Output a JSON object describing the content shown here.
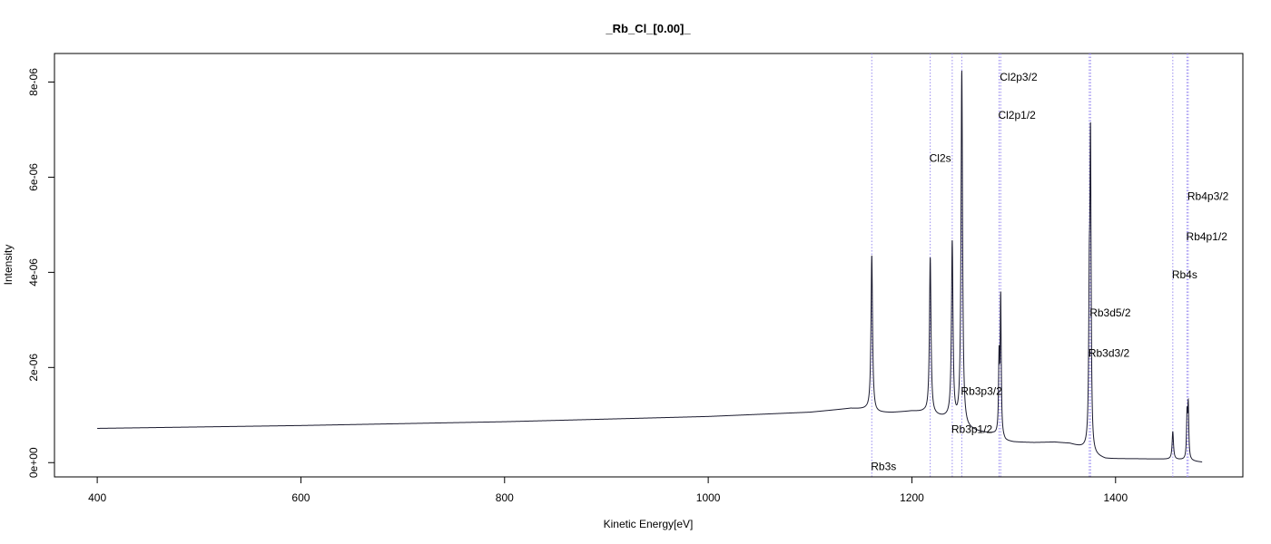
{
  "chart_data": {
    "type": "line",
    "title": "_Rb_Cl_[0.00]_",
    "xlabel": "Kinetic Energy[eV]",
    "ylabel": "Intensity",
    "xlim": [
      358,
      1525
    ],
    "ylim": [
      -3e-07,
      8.6e-06
    ],
    "xticks": [
      400,
      600,
      800,
      1000,
      1200,
      1400
    ],
    "xtick_labels": [
      "400",
      "600",
      "800",
      "1000",
      "1200",
      "1400"
    ],
    "yticks": [
      0,
      2e-06,
      4e-06,
      6e-06,
      8e-06
    ],
    "ytick_labels": [
      "0e+00",
      "2e-06",
      "4e-06",
      "6e-06",
      "8e-06"
    ],
    "grid": false,
    "line_color": "#1a1a2e",
    "marker_color": "#9a8cf0",
    "baseline": [
      [
        400,
        7.2e-07
      ],
      [
        600,
        7.8e-07
      ],
      [
        800,
        8.6e-07
      ],
      [
        1000,
        9.7e-07
      ],
      [
        1100,
        1.06e-06
      ],
      [
        1140,
        1.14e-06
      ],
      [
        1155,
        1.12e-06
      ],
      [
        1165,
        1.05e-06
      ],
      [
        1180,
        1.05e-06
      ],
      [
        1200,
        1.08e-06
      ],
      [
        1212,
        1.06e-06
      ],
      [
        1220,
        1e-06
      ],
      [
        1230,
        9.5e-07
      ],
      [
        1238,
        9.3e-07
      ],
      [
        1242,
        8.5e-07
      ],
      [
        1248,
        7.8e-07
      ],
      [
        1255,
        7e-07
      ],
      [
        1265,
        6.5e-07
      ],
      [
        1280,
        6e-07
      ],
      [
        1286,
        5.5e-07
      ],
      [
        1292,
        4.5e-07
      ],
      [
        1300,
        4.3e-07
      ],
      [
        1320,
        4.2e-07
      ],
      [
        1340,
        4.3e-07
      ],
      [
        1355,
        4e-07
      ],
      [
        1365,
        3.3e-07
      ],
      [
        1372,
        2.8e-07
      ],
      [
        1378,
        1.5e-07
      ],
      [
        1390,
        8e-08
      ],
      [
        1420,
        8e-08
      ],
      [
        1455,
        7e-08
      ],
      [
        1470,
        5e-08
      ],
      [
        1480,
        2e-08
      ],
      [
        1485,
        1e-08
      ]
    ],
    "peaks": [
      {
        "name": "Rb3s",
        "x": 1160.6,
        "height": 4.35e-06,
        "width": 0.9,
        "label_y": -8e-08
      },
      {
        "name": "Cl2s",
        "x": 1218.0,
        "height": 4.3e-06,
        "width": 0.9,
        "label_y": 6.4e-06
      },
      {
        "name": "Rb3p1/2",
        "x": 1239.6,
        "height": 4.6e-06,
        "width": 0.9,
        "label_y": 7e-07
      },
      {
        "name": "Rb3p3/2",
        "x": 1249.0,
        "height": 8.2e-06,
        "width": 0.9,
        "label_y": 1.5e-06
      },
      {
        "name": "Cl2p1/2",
        "x": 1285.6,
        "height": 2.1e-06,
        "width": 0.6,
        "label_y": 7.3e-06
      },
      {
        "name": "Cl2p3/2",
        "x": 1287.2,
        "height": 3.4e-06,
        "width": 0.6,
        "label_y": 8.1e-06
      },
      {
        "name": "Rb3d3/2",
        "x": 1374.2,
        "height": 3e-06,
        "width": 0.7,
        "label_y": 2.3e-06
      },
      {
        "name": "Rb3d5/2",
        "x": 1375.4,
        "height": 6.45e-06,
        "width": 0.7,
        "label_y": 3.15e-06
      },
      {
        "name": "Rb4s",
        "x": 1456.2,
        "height": 6.5e-07,
        "width": 0.8,
        "label_y": 3.95e-06
      },
      {
        "name": "Rb4p1/2",
        "x": 1470.2,
        "height": 9.5e-07,
        "width": 0.6,
        "label_y": 4.75e-06
      },
      {
        "name": "Rb4p3/2",
        "x": 1471.4,
        "height": 1.15e-06,
        "width": 0.6,
        "label_y": 5.6e-06
      }
    ]
  }
}
